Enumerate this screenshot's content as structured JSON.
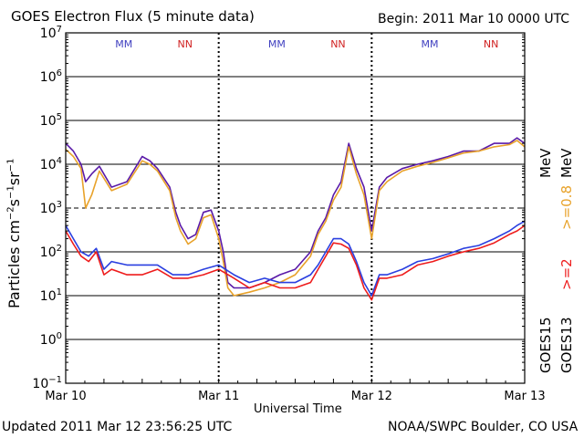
{
  "header": {
    "title": "GOES Electron Flux (5 minute data)",
    "begin": "Begin: 2011 Mar 10 0000 UTC"
  },
  "footer": {
    "updated": "Updated 2011 Mar 12 23:56:25 UTC",
    "credit": "NOAA/SWPC Boulder, CO USA"
  },
  "chart_data": {
    "type": "line",
    "title": "GOES Electron Flux (5 minute data)",
    "xlabel": "Universal Time",
    "ylabel": "Particles cm^-2 s^-1 sr^-1",
    "y_scale": "log",
    "ylim": [
      0.1,
      10000000
    ],
    "y_tick_exponents": [
      -1,
      0,
      1,
      2,
      3,
      4,
      5,
      6,
      7
    ],
    "x_range_days": [
      0,
      3
    ],
    "x_ticks": [
      {
        "day": 0,
        "label": "Mar 10"
      },
      {
        "day": 1,
        "label": "Mar 11"
      },
      {
        "day": 2,
        "label": "Mar 12"
      },
      {
        "day": 3,
        "label": "Mar 13"
      }
    ],
    "threshold_line": 1000,
    "grid": true,
    "day_markers": [
      {
        "day": 0.38,
        "text": "MM",
        "color": "#4040c0"
      },
      {
        "day": 0.78,
        "text": "NN",
        "color": "#d02020"
      },
      {
        "day": 1.38,
        "text": "MM",
        "color": "#4040c0"
      },
      {
        "day": 1.78,
        "text": "NN",
        "color": "#d02020"
      },
      {
        "day": 2.38,
        "text": "MM",
        "color": "#4040c0"
      },
      {
        "day": 2.78,
        "text": "NN",
        "color": "#d02020"
      }
    ],
    "right_labels": {
      "mev_label": "MeV",
      "ge08": ">=0.8",
      "ge2": ">=2",
      "goes15": "GOES15",
      "goes13": "GOES13"
    },
    "series": [
      {
        "name": ">=0.8 MeV GOES15",
        "color": "#5a1aa8",
        "x": [
          0,
          0.05,
          0.1,
          0.13,
          0.17,
          0.22,
          0.3,
          0.4,
          0.5,
          0.55,
          0.6,
          0.68,
          0.72,
          0.75,
          0.8,
          0.85,
          0.9,
          0.95,
          1.0,
          1.03,
          1.06,
          1.1,
          1.2,
          1.3,
          1.4,
          1.5,
          1.6,
          1.65,
          1.7,
          1.75,
          1.8,
          1.85,
          1.9,
          1.95,
          2.0,
          2.05,
          2.1,
          2.2,
          2.3,
          2.4,
          2.5,
          2.6,
          2.7,
          2.8,
          2.9,
          2.95,
          3.0
        ],
        "y": [
          30000,
          20000,
          10000,
          4000,
          6000,
          9000,
          3000,
          4000,
          15000,
          12000,
          8000,
          3000,
          800,
          400,
          200,
          250,
          800,
          900,
          300,
          100,
          20,
          15,
          15,
          20,
          30,
          40,
          100,
          300,
          600,
          2000,
          4000,
          30000,
          8000,
          3000,
          300,
          3000,
          5000,
          8000,
          10000,
          12000,
          15000,
          20000,
          20000,
          30000,
          30000,
          40000,
          30000
        ]
      },
      {
        "name": ">=0.8 MeV GOES13",
        "color": "#e8a22a",
        "x": [
          0,
          0.05,
          0.1,
          0.13,
          0.17,
          0.22,
          0.3,
          0.4,
          0.5,
          0.55,
          0.6,
          0.68,
          0.72,
          0.75,
          0.8,
          0.85,
          0.9,
          0.95,
          1.0,
          1.03,
          1.06,
          1.1,
          1.2,
          1.3,
          1.4,
          1.5,
          1.6,
          1.65,
          1.7,
          1.75,
          1.8,
          1.85,
          1.9,
          1.95,
          2.0,
          2.05,
          2.1,
          2.2,
          2.3,
          2.4,
          2.5,
          2.6,
          2.7,
          2.8,
          2.9,
          2.95,
          3.0
        ],
        "y": [
          22000,
          15000,
          8000,
          1000,
          2000,
          7000,
          2500,
          3500,
          12000,
          10000,
          7000,
          2500,
          600,
          300,
          150,
          200,
          600,
          700,
          200,
          60,
          15,
          10,
          12,
          15,
          20,
          30,
          80,
          250,
          500,
          1500,
          3000,
          25000,
          6000,
          2000,
          200,
          2500,
          4000,
          7000,
          9000,
          11000,
          14000,
          18000,
          20000,
          25000,
          28000,
          35000,
          25000
        ]
      },
      {
        "name": ">=2 MeV GOES15",
        "color": "#2a3fe0",
        "x": [
          0,
          0.05,
          0.1,
          0.15,
          0.2,
          0.25,
          0.3,
          0.4,
          0.5,
          0.6,
          0.7,
          0.8,
          0.9,
          1.0,
          1.1,
          1.2,
          1.3,
          1.4,
          1.5,
          1.6,
          1.65,
          1.7,
          1.75,
          1.8,
          1.85,
          1.9,
          1.95,
          2.0,
          2.05,
          2.1,
          2.2,
          2.3,
          2.4,
          2.5,
          2.6,
          2.7,
          2.8,
          2.9,
          2.95,
          3.0
        ],
        "y": [
          400,
          200,
          100,
          80,
          120,
          40,
          60,
          50,
          50,
          50,
          30,
          30,
          40,
          50,
          30,
          20,
          25,
          20,
          20,
          30,
          50,
          100,
          200,
          200,
          150,
          60,
          20,
          10,
          30,
          30,
          40,
          60,
          70,
          90,
          120,
          140,
          200,
          300,
          400,
          500
        ]
      },
      {
        "name": ">=2 MeV GOES13",
        "color": "#ee1c1c",
        "x": [
          0,
          0.05,
          0.1,
          0.15,
          0.2,
          0.25,
          0.3,
          0.4,
          0.5,
          0.6,
          0.7,
          0.8,
          0.9,
          1.0,
          1.1,
          1.2,
          1.3,
          1.4,
          1.5,
          1.6,
          1.65,
          1.7,
          1.75,
          1.8,
          1.85,
          1.9,
          1.95,
          2.0,
          2.05,
          2.1,
          2.2,
          2.3,
          2.4,
          2.5,
          2.6,
          2.7,
          2.8,
          2.9,
          2.95,
          3.0
        ],
        "y": [
          300,
          150,
          80,
          60,
          100,
          30,
          40,
          30,
          30,
          40,
          25,
          25,
          30,
          40,
          25,
          15,
          20,
          15,
          15,
          20,
          40,
          80,
          160,
          150,
          120,
          50,
          15,
          8,
          25,
          25,
          30,
          50,
          60,
          80,
          100,
          120,
          160,
          250,
          300,
          400
        ]
      }
    ]
  }
}
